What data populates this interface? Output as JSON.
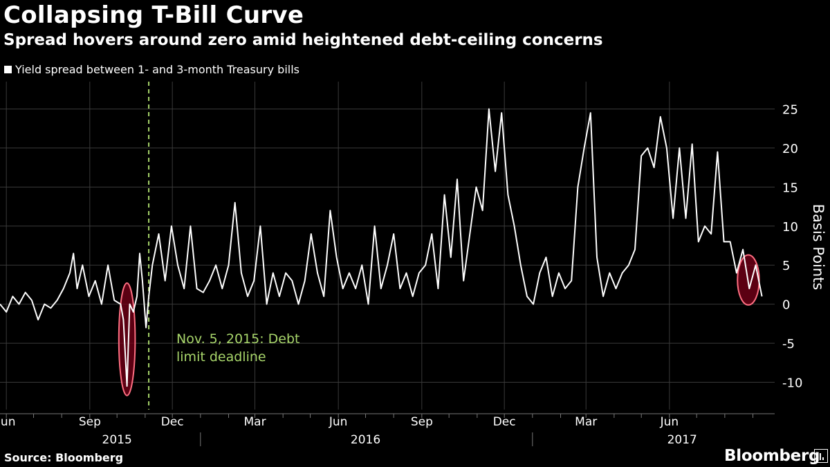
{
  "header": {
    "title": "Collapsing T-Bill Curve",
    "subtitle": "Spread hovers around zero amid heightened debt-ceiling concerns"
  },
  "footer": {
    "source": "Source: Bloomberg",
    "brand": "Bloomberg"
  },
  "chart_data": {
    "type": "line",
    "title": "Collapsing T-Bill Curve",
    "subtitle": "Spread hovers around zero amid heightened debt-ceiling concerns",
    "legend": [
      "Yield spread between 1- and 3-month Treasury bills"
    ],
    "legend_position": "top-left",
    "ylabel": "Basis Points",
    "ylim": [
      -13.5,
      28.5
    ],
    "yticks": [
      25,
      20,
      15,
      10,
      5,
      0,
      -5,
      -10
    ],
    "y_tick_labels": [
      "25",
      "20",
      "15",
      "10",
      "5",
      "0",
      "-5",
      "-10"
    ],
    "grid": true,
    "xlim": [
      "2015-05-25",
      "2017-09-25"
    ],
    "x_month_ticks": [
      {
        "date": "2015-06-01",
        "label": "Jun"
      },
      {
        "date": "2015-09-01",
        "label": "Sep"
      },
      {
        "date": "2015-12-01",
        "label": "Dec"
      },
      {
        "date": "2016-03-01",
        "label": "Mar"
      },
      {
        "date": "2016-06-01",
        "label": "Jun"
      },
      {
        "date": "2016-09-01",
        "label": "Sep"
      },
      {
        "date": "2016-12-01",
        "label": "Dec"
      },
      {
        "date": "2017-03-01",
        "label": "Mar"
      },
      {
        "date": "2017-06-01",
        "label": "Jun"
      }
    ],
    "x_year_labels": [
      {
        "date": "2015-10-01",
        "label": "2015"
      },
      {
        "date": "2016-07-01",
        "label": "2016"
      },
      {
        "date": "2017-06-15",
        "label": "2017"
      }
    ],
    "year_dividers": [
      "2016-01-01",
      "2017-01-01"
    ],
    "series": [
      {
        "name": "Yield spread between 1- and 3-month Treasury bills",
        "color": "#ffffff",
        "points": [
          [
            "2015-05-25",
            0
          ],
          [
            "2015-06-01",
            -1
          ],
          [
            "2015-06-08",
            1
          ],
          [
            "2015-06-15",
            0
          ],
          [
            "2015-06-22",
            1.5
          ],
          [
            "2015-06-29",
            0.5
          ],
          [
            "2015-07-06",
            -2
          ],
          [
            "2015-07-13",
            0
          ],
          [
            "2015-07-20",
            -0.5
          ],
          [
            "2015-07-27",
            0.5
          ],
          [
            "2015-08-03",
            2
          ],
          [
            "2015-08-10",
            4
          ],
          [
            "2015-08-14",
            6.5
          ],
          [
            "2015-08-18",
            2
          ],
          [
            "2015-08-24",
            5
          ],
          [
            "2015-08-31",
            1
          ],
          [
            "2015-09-07",
            3
          ],
          [
            "2015-09-14",
            0
          ],
          [
            "2015-09-21",
            5
          ],
          [
            "2015-09-28",
            0.5
          ],
          [
            "2015-10-05",
            0
          ],
          [
            "2015-10-08",
            -2
          ],
          [
            "2015-10-12",
            -10.5
          ],
          [
            "2015-10-15",
            0
          ],
          [
            "2015-10-19",
            -1
          ],
          [
            "2015-10-23",
            1
          ],
          [
            "2015-10-26",
            6.5
          ],
          [
            "2015-10-29",
            3
          ],
          [
            "2015-11-02",
            -3
          ],
          [
            "2015-11-05",
            1
          ],
          [
            "2015-11-09",
            5
          ],
          [
            "2015-11-16",
            9
          ],
          [
            "2015-11-23",
            3
          ],
          [
            "2015-11-30",
            10
          ],
          [
            "2015-12-07",
            5
          ],
          [
            "2015-12-14",
            2
          ],
          [
            "2015-12-21",
            10
          ],
          [
            "2015-12-28",
            2
          ],
          [
            "2016-01-04",
            1.5
          ],
          [
            "2016-01-11",
            3
          ],
          [
            "2016-01-18",
            5
          ],
          [
            "2016-01-25",
            2
          ],
          [
            "2016-02-01",
            5
          ],
          [
            "2016-02-08",
            13
          ],
          [
            "2016-02-15",
            4
          ],
          [
            "2016-02-22",
            1
          ],
          [
            "2016-02-29",
            3
          ],
          [
            "2016-03-07",
            10
          ],
          [
            "2016-03-14",
            0
          ],
          [
            "2016-03-21",
            4
          ],
          [
            "2016-03-28",
            1
          ],
          [
            "2016-04-04",
            4
          ],
          [
            "2016-04-11",
            3
          ],
          [
            "2016-04-18",
            0
          ],
          [
            "2016-04-25",
            3
          ],
          [
            "2016-05-02",
            9
          ],
          [
            "2016-05-09",
            4
          ],
          [
            "2016-05-16",
            1
          ],
          [
            "2016-05-23",
            12
          ],
          [
            "2016-05-30",
            6
          ],
          [
            "2016-06-06",
            2
          ],
          [
            "2016-06-13",
            4
          ],
          [
            "2016-06-20",
            2
          ],
          [
            "2016-06-27",
            5
          ],
          [
            "2016-07-04",
            0
          ],
          [
            "2016-07-11",
            10
          ],
          [
            "2016-07-18",
            2
          ],
          [
            "2016-07-25",
            5
          ],
          [
            "2016-08-01",
            9
          ],
          [
            "2016-08-08",
            2
          ],
          [
            "2016-08-15",
            4
          ],
          [
            "2016-08-22",
            1
          ],
          [
            "2016-08-29",
            4
          ],
          [
            "2016-09-05",
            5
          ],
          [
            "2016-09-12",
            9
          ],
          [
            "2016-09-19",
            2
          ],
          [
            "2016-09-26",
            14
          ],
          [
            "2016-10-03",
            6
          ],
          [
            "2016-10-10",
            16
          ],
          [
            "2016-10-17",
            3
          ],
          [
            "2016-10-24",
            9
          ],
          [
            "2016-10-31",
            15
          ],
          [
            "2016-11-07",
            12
          ],
          [
            "2016-11-14",
            25
          ],
          [
            "2016-11-21",
            17
          ],
          [
            "2016-11-28",
            24.5
          ],
          [
            "2016-12-05",
            14
          ],
          [
            "2016-12-12",
            10
          ],
          [
            "2016-12-19",
            5
          ],
          [
            "2016-12-26",
            1
          ],
          [
            "2017-01-02",
            0
          ],
          [
            "2017-01-09",
            4
          ],
          [
            "2017-01-16",
            6
          ],
          [
            "2017-01-23",
            1
          ],
          [
            "2017-01-30",
            4
          ],
          [
            "2017-02-06",
            2
          ],
          [
            "2017-02-13",
            3
          ],
          [
            "2017-02-20",
            15
          ],
          [
            "2017-02-27",
            20
          ],
          [
            "2017-03-06",
            24.5
          ],
          [
            "2017-03-13",
            6
          ],
          [
            "2017-03-20",
            1
          ],
          [
            "2017-03-27",
            4
          ],
          [
            "2017-04-03",
            2
          ],
          [
            "2017-04-10",
            4
          ],
          [
            "2017-04-17",
            5
          ],
          [
            "2017-04-24",
            7
          ],
          [
            "2017-05-01",
            19
          ],
          [
            "2017-05-08",
            20
          ],
          [
            "2017-05-15",
            17.5
          ],
          [
            "2017-05-22",
            24
          ],
          [
            "2017-05-29",
            20
          ],
          [
            "2017-06-05",
            11
          ],
          [
            "2017-06-12",
            20
          ],
          [
            "2017-06-19",
            11
          ],
          [
            "2017-06-26",
            20.5
          ],
          [
            "2017-07-03",
            8
          ],
          [
            "2017-07-10",
            10
          ],
          [
            "2017-07-17",
            9
          ],
          [
            "2017-07-24",
            19.5
          ],
          [
            "2017-07-31",
            8
          ],
          [
            "2017-08-07",
            8
          ],
          [
            "2017-08-14",
            4
          ],
          [
            "2017-08-21",
            7
          ],
          [
            "2017-08-28",
            2
          ],
          [
            "2017-09-04",
            5
          ],
          [
            "2017-09-11",
            1
          ]
        ]
      }
    ],
    "reference_line": {
      "date": "2015-11-05",
      "style": "dashed",
      "color": "#a8d66b",
      "label_line1": "Nov. 5, 2015: Debt",
      "label_line2": "limit deadline"
    },
    "highlights": [
      {
        "name": "Oct 2015 dip",
        "center_date": "2015-10-12",
        "center_value": -4.5,
        "half_width_days": 9,
        "half_height": 7.2
      },
      {
        "name": "Aug 2017 dip",
        "center_date": "2017-08-27",
        "center_value": 3.1,
        "half_width_days": 12,
        "half_height": 3.2
      }
    ]
  }
}
